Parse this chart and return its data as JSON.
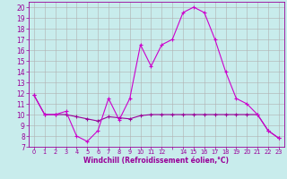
{
  "xlabel": "Windchill (Refroidissement éolien,°C)",
  "bg_color": "#c8ecec",
  "grid_color": "#b0b0b0",
  "line1_color": "#990099",
  "line2_color": "#cc00cc",
  "hours": [
    0,
    1,
    2,
    3,
    4,
    5,
    6,
    7,
    8,
    9,
    10,
    11,
    12,
    13,
    14,
    15,
    16,
    17,
    18,
    19,
    20,
    21,
    22,
    23
  ],
  "xtick_labels": [
    "0",
    "1",
    "2",
    "3",
    "4",
    "5",
    "6",
    "7",
    "8",
    "9",
    "10",
    "11",
    "12",
    "",
    "14",
    "15",
    "16",
    "17",
    "18",
    "19",
    "20",
    "21",
    "22",
    "23"
  ],
  "temp": [
    11.8,
    10.0,
    10.0,
    10.3,
    8.0,
    7.5,
    8.5,
    11.5,
    9.5,
    11.5,
    16.5,
    14.5,
    16.5,
    17.0,
    19.5,
    20.0,
    19.5,
    17.0,
    14.0,
    11.5,
    11.0,
    10.0,
    8.5,
    7.8
  ],
  "windchill": [
    11.8,
    10.0,
    10.0,
    10.0,
    9.8,
    9.6,
    9.4,
    9.8,
    9.7,
    9.6,
    9.9,
    10.0,
    10.0,
    10.0,
    10.0,
    10.0,
    10.0,
    10.0,
    10.0,
    10.0,
    10.0,
    10.0,
    8.5,
    7.8
  ],
  "ylim": [
    7,
    20.5
  ],
  "yticks": [
    7,
    8,
    9,
    10,
    11,
    12,
    13,
    14,
    15,
    16,
    17,
    18,
    19,
    20
  ],
  "marker": "+"
}
